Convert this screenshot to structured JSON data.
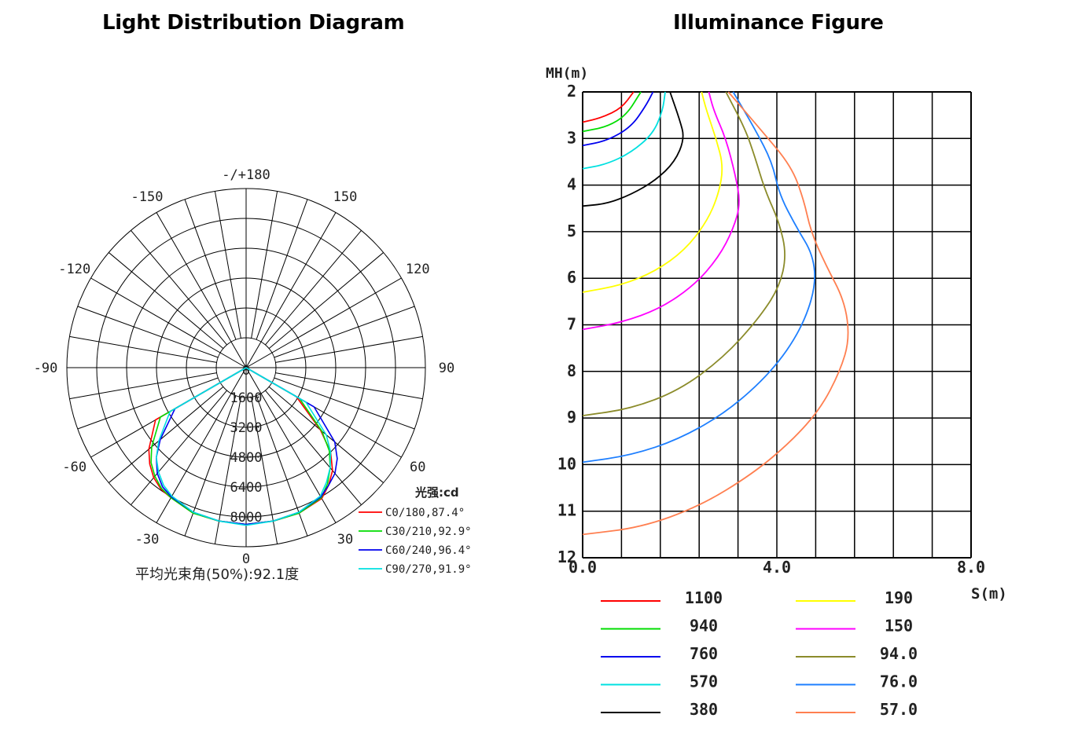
{
  "titles": {
    "polar": "Light Distribution Diagram",
    "illuminance": "Illuminance Figure"
  },
  "chart_data": [
    {
      "type": "polar",
      "title": "Light Distribution Diagram",
      "angle_labels": [
        {
          "angle": 180,
          "text": "-/+180"
        },
        {
          "angle": 150,
          "text": "150"
        },
        {
          "angle": -150,
          "text": "-150"
        },
        {
          "angle": 120,
          "text": "120"
        },
        {
          "angle": -120,
          "text": "-120"
        },
        {
          "angle": 90,
          "text": "90"
        },
        {
          "angle": -90,
          "text": "-90"
        },
        {
          "angle": 60,
          "text": "60"
        },
        {
          "angle": -60,
          "text": "-60"
        },
        {
          "angle": 30,
          "text": "30"
        },
        {
          "angle": -30,
          "text": "-30"
        },
        {
          "angle": 0,
          "text": "0"
        }
      ],
      "radial_ticks": [
        "0",
        "1600",
        "3200",
        "4800",
        "6400",
        "8000"
      ],
      "r_max": 9600,
      "unit_label": "光强:cd",
      "average_beam_angle_label": "平均光束角(50%):92.1度",
      "series": [
        {
          "name": "C0/180,87.4°",
          "color": "#ff0000",
          "angles": [
            -70,
            -60,
            -50,
            -45,
            -40,
            -35,
            -30,
            -20,
            -10,
            0,
            10,
            20,
            30,
            35,
            40,
            45,
            50,
            60,
            70
          ],
          "values": [
            0,
            5600,
            6800,
            7300,
            7700,
            7950,
            8050,
            8300,
            8350,
            8400,
            8350,
            8300,
            8100,
            7700,
            7200,
            6400,
            5200,
            3100,
            0
          ]
        },
        {
          "name": "C30/210,92.9°",
          "color": "#00dd00",
          "angles": [
            -70,
            -60,
            -50,
            -45,
            -40,
            -35,
            -30,
            -20,
            -10,
            0,
            10,
            20,
            30,
            35,
            40,
            45,
            50,
            60,
            70
          ],
          "values": [
            0,
            5300,
            6600,
            7200,
            7600,
            7900,
            8050,
            8300,
            8350,
            8400,
            8350,
            8300,
            8050,
            7600,
            7000,
            6300,
            5300,
            3300,
            0
          ]
        },
        {
          "name": "C60/240,96.4°",
          "color": "#0000ee",
          "angles": [
            -70,
            -60,
            -50,
            -45,
            -40,
            -35,
            -30,
            -20,
            -10,
            0,
            10,
            20,
            30,
            35,
            40,
            45,
            50,
            60,
            70
          ],
          "values": [
            0,
            4400,
            6000,
            6800,
            7400,
            7800,
            8000,
            8250,
            8350,
            8400,
            8350,
            8250,
            8000,
            7700,
            7400,
            6900,
            6200,
            4200,
            0
          ]
        },
        {
          "name": "C90/270,91.9°",
          "color": "#00e0e0",
          "angles": [
            -70,
            -60,
            -50,
            -45,
            -40,
            -35,
            -30,
            -20,
            -10,
            0,
            10,
            20,
            30,
            35,
            40,
            45,
            50,
            60,
            70
          ],
          "values": [
            0,
            4700,
            6100,
            6800,
            7300,
            7700,
            7950,
            8250,
            8350,
            8450,
            8350,
            8250,
            7950,
            7500,
            7000,
            6400,
            5600,
            3700,
            0
          ]
        }
      ]
    },
    {
      "type": "line",
      "title": "Illuminance Figure",
      "xlabel": "S(m)",
      "ylabel": "MH(m)",
      "xlim": [
        0,
        8
      ],
      "ylim": [
        2,
        12
      ],
      "x_ticks": [
        "0.0",
        "4.0",
        "8.0"
      ],
      "y_ticks": [
        "2",
        "3",
        "4",
        "5",
        "6",
        "7",
        "8",
        "9",
        "10",
        "11",
        "12"
      ],
      "series": [
        {
          "name": "1100",
          "color": "#ff0000",
          "points": [
            [
              0,
              2.65
            ],
            [
              0.4,
              2.55
            ],
            [
              0.8,
              2.35
            ],
            [
              1.05,
              2.0
            ]
          ]
        },
        {
          "name": "940",
          "color": "#00dd00",
          "points": [
            [
              0,
              2.85
            ],
            [
              0.5,
              2.75
            ],
            [
              0.9,
              2.5
            ],
            [
              1.2,
              2.0
            ]
          ]
        },
        {
          "name": "760",
          "color": "#0000ee",
          "points": [
            [
              0,
              3.15
            ],
            [
              0.5,
              3.05
            ],
            [
              1.0,
              2.75
            ],
            [
              1.3,
              2.3
            ],
            [
              1.45,
              2.0
            ]
          ]
        },
        {
          "name": "570",
          "color": "#00e0e0",
          "points": [
            [
              0,
              3.65
            ],
            [
              0.5,
              3.55
            ],
            [
              1.0,
              3.3
            ],
            [
              1.45,
              2.9
            ],
            [
              1.65,
              2.4
            ],
            [
              1.7,
              2.0
            ]
          ]
        },
        {
          "name": "380",
          "color": "#000000",
          "points": [
            [
              0,
              4.45
            ],
            [
              0.5,
              4.4
            ],
            [
              1.0,
              4.2
            ],
            [
              1.5,
              3.9
            ],
            [
              1.9,
              3.5
            ],
            [
              2.1,
              3.0
            ],
            [
              2.0,
              2.6
            ],
            [
              1.8,
              2.0
            ]
          ]
        },
        {
          "name": "190",
          "color": "#ffff00",
          "points": [
            [
              0,
              6.3
            ],
            [
              0.8,
              6.15
            ],
            [
              1.5,
              5.85
            ],
            [
              2.1,
              5.4
            ],
            [
              2.55,
              4.8
            ],
            [
              2.8,
              4.2
            ],
            [
              2.9,
              3.6
            ],
            [
              2.75,
              3.0
            ],
            [
              2.55,
              2.4
            ],
            [
              2.45,
              2.0
            ]
          ]
        },
        {
          "name": "150",
          "color": "#ff00ff",
          "points": [
            [
              0,
              7.1
            ],
            [
              0.8,
              6.95
            ],
            [
              1.6,
              6.65
            ],
            [
              2.3,
              6.15
            ],
            [
              2.8,
              5.55
            ],
            [
              3.1,
              4.95
            ],
            [
              3.25,
              4.4
            ],
            [
              3.15,
              3.8
            ],
            [
              2.95,
              3.0
            ],
            [
              2.7,
              2.4
            ],
            [
              2.6,
              2.0
            ]
          ]
        },
        {
          "name": "94.0",
          "color": "#8b8b2a",
          "points": [
            [
              0,
              8.95
            ],
            [
              1.0,
              8.8
            ],
            [
              2.0,
              8.4
            ],
            [
              2.9,
              7.7
            ],
            [
              3.6,
              6.9
            ],
            [
              4.05,
              6.2
            ],
            [
              4.2,
              5.5
            ],
            [
              4.05,
              4.8
            ],
            [
              3.75,
              4.1
            ],
            [
              3.55,
              3.4
            ],
            [
              3.35,
              2.8
            ],
            [
              2.95,
              2.0
            ]
          ]
        },
        {
          "name": "76.0",
          "color": "#1e7fff",
          "points": [
            [
              0,
              9.95
            ],
            [
              1.0,
              9.8
            ],
            [
              2.0,
              9.45
            ],
            [
              3.0,
              8.85
            ],
            [
              3.9,
              8.0
            ],
            [
              4.5,
              7.1
            ],
            [
              4.8,
              6.2
            ],
            [
              4.75,
              5.5
            ],
            [
              4.4,
              4.9
            ],
            [
              4.05,
              4.2
            ],
            [
              3.9,
              3.5
            ],
            [
              3.55,
              2.8
            ],
            [
              3.1,
              2.0
            ]
          ]
        },
        {
          "name": "57.0",
          "color": "#ff7f50",
          "points": [
            [
              0,
              11.5
            ],
            [
              1.2,
              11.35
            ],
            [
              2.4,
              10.9
            ],
            [
              3.5,
              10.2
            ],
            [
              4.3,
              9.5
            ],
            [
              4.9,
              8.8
            ],
            [
              5.3,
              8.0
            ],
            [
              5.5,
              7.3
            ],
            [
              5.4,
              6.5
            ],
            [
              5.0,
              5.7
            ],
            [
              4.7,
              5.0
            ],
            [
              4.55,
              4.3
            ],
            [
              4.3,
              3.6
            ],
            [
              3.7,
              2.85
            ],
            [
              3.0,
              2.0
            ]
          ]
        }
      ]
    }
  ]
}
